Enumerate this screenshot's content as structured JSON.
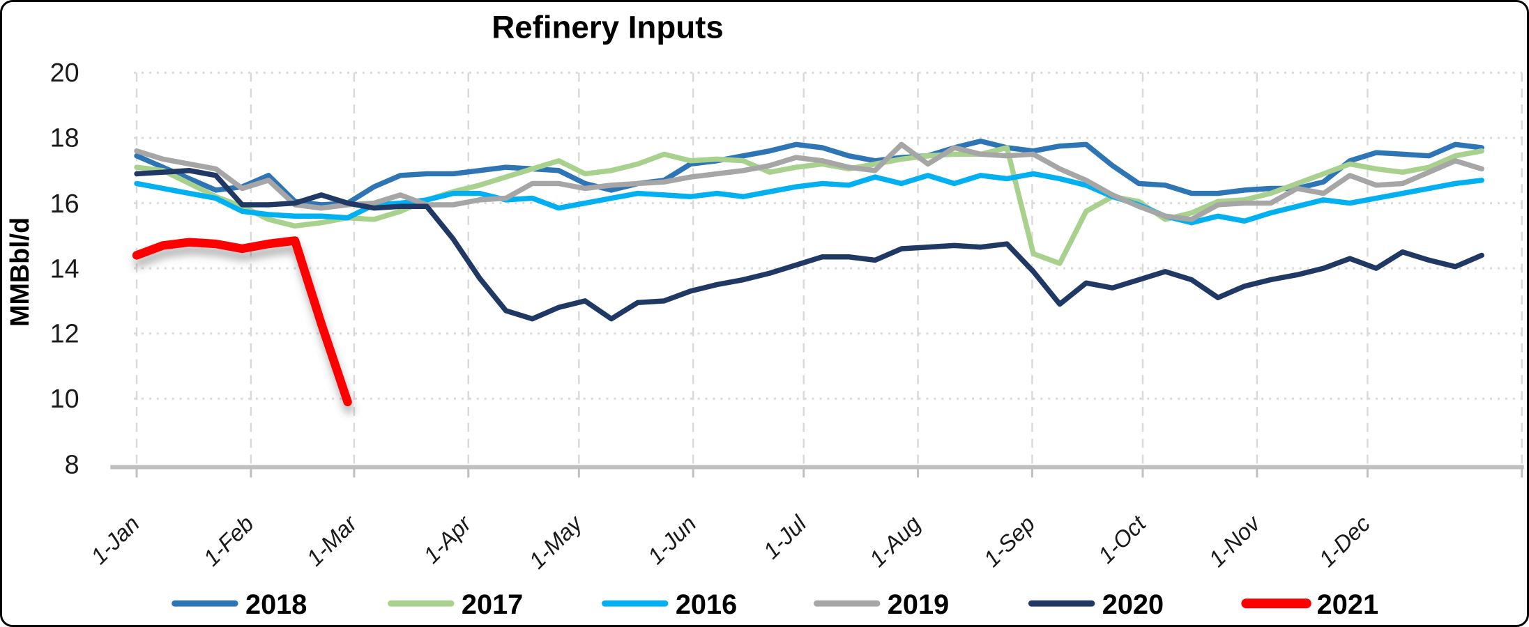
{
  "title": "Refinery Inputs",
  "y_axis": {
    "label": "MMBbl/d",
    "tick_labels": [
      "20",
      "18",
      "16",
      "14",
      "12",
      "10",
      "8"
    ],
    "min": 8,
    "max": 20
  },
  "x_axis": {
    "tick_labels": [
      "1-Jan",
      "1-Feb",
      "1-Mar",
      "1-Apr",
      "1-May",
      "1-Jun",
      "1-Jul",
      "1-Aug",
      "1-Sep",
      "1-Oct",
      "1-Nov",
      "1-Dec"
    ]
  },
  "colors": {
    "grid": "#D9D9D9",
    "axis": "#BFBFBF",
    "text": "#000000"
  },
  "chart_data": {
    "type": "line",
    "title": "Refinery Inputs",
    "ylabel": "MMBbl/d",
    "xlabel": "",
    "ylim": [
      8,
      20
    ],
    "x_unit": "weeks (weekly data, Jan through Dec)",
    "x_tick_labels": [
      "1-Jan",
      "1-Feb",
      "1-Mar",
      "1-Apr",
      "1-May",
      "1-Jun",
      "1-Jul",
      "1-Aug",
      "1-Sep",
      "1-Oct",
      "1-Nov",
      "1-Dec"
    ],
    "grid": "dashed light gray, monthly vertical and every-2-units horizontal",
    "legend_position": "bottom",
    "series": [
      {
        "name": "2018",
        "color": "#2E75B6",
        "emphasis": false,
        "values": [
          17.45,
          17.1,
          16.75,
          16.4,
          16.5,
          16.85,
          16.05,
          15.95,
          16.0,
          16.5,
          16.85,
          16.9,
          16.9,
          17.0,
          17.1,
          17.05,
          17.0,
          16.6,
          16.4,
          16.6,
          16.7,
          17.2,
          17.3,
          17.45,
          17.6,
          17.8,
          17.7,
          17.45,
          17.3,
          17.4,
          17.45,
          17.7,
          17.9,
          17.7,
          17.6,
          17.75,
          17.8,
          17.15,
          16.6,
          16.55,
          16.3,
          16.3,
          16.4,
          16.45,
          16.45,
          16.65,
          17.3,
          17.55,
          17.5,
          17.45,
          17.8,
          17.7
        ]
      },
      {
        "name": "2017",
        "color": "#A9D18E",
        "emphasis": false,
        "values": [
          17.1,
          17.0,
          16.6,
          16.2,
          15.9,
          15.5,
          15.3,
          15.4,
          15.55,
          15.5,
          15.75,
          16.1,
          16.35,
          16.55,
          16.8,
          17.05,
          17.3,
          16.9,
          17.0,
          17.2,
          17.5,
          17.3,
          17.35,
          17.3,
          16.95,
          17.1,
          17.2,
          17.05,
          17.2,
          17.35,
          17.45,
          17.5,
          17.5,
          17.7,
          14.45,
          14.15,
          15.75,
          16.2,
          16.05,
          15.5,
          15.7,
          16.05,
          16.1,
          16.3,
          16.6,
          16.9,
          17.2,
          17.05,
          16.95,
          17.1,
          17.45,
          17.6
        ]
      },
      {
        "name": "2016",
        "color": "#00B0F0",
        "emphasis": false,
        "values": [
          16.6,
          16.45,
          16.3,
          16.15,
          15.75,
          15.65,
          15.6,
          15.6,
          15.55,
          15.95,
          16.0,
          16.1,
          16.3,
          16.3,
          16.1,
          16.15,
          15.85,
          16.0,
          16.15,
          16.3,
          16.25,
          16.2,
          16.3,
          16.2,
          16.35,
          16.5,
          16.6,
          16.55,
          16.8,
          16.6,
          16.85,
          16.6,
          16.85,
          16.75,
          16.9,
          16.75,
          16.55,
          16.2,
          15.95,
          15.6,
          15.4,
          15.6,
          15.45,
          15.7,
          15.9,
          16.1,
          16.0,
          16.15,
          16.3,
          16.45,
          16.6,
          16.7
        ]
      },
      {
        "name": "2019",
        "color": "#A6A6A6",
        "emphasis": false,
        "values": [
          17.6,
          17.35,
          17.2,
          17.05,
          16.45,
          16.7,
          15.95,
          15.85,
          15.95,
          16.0,
          16.25,
          15.95,
          15.95,
          16.1,
          16.15,
          16.6,
          16.6,
          16.45,
          16.55,
          16.6,
          16.65,
          16.8,
          16.9,
          17.0,
          17.15,
          17.4,
          17.3,
          17.1,
          17.0,
          17.8,
          17.2,
          17.7,
          17.5,
          17.45,
          17.5,
          17.05,
          16.7,
          16.25,
          15.9,
          15.6,
          15.5,
          15.95,
          16.0,
          16.0,
          16.45,
          16.3,
          16.85,
          16.55,
          16.6,
          16.95,
          17.3,
          17.05
        ]
      },
      {
        "name": "2020",
        "color": "#1F3864",
        "emphasis": false,
        "values": [
          16.9,
          16.95,
          17.0,
          16.85,
          15.95,
          15.95,
          16.0,
          16.25,
          16.0,
          15.85,
          15.9,
          15.9,
          14.9,
          13.7,
          12.7,
          12.45,
          12.8,
          13.0,
          12.45,
          12.95,
          13.0,
          13.3,
          13.5,
          13.65,
          13.85,
          14.1,
          14.35,
          14.35,
          14.25,
          14.6,
          14.65,
          14.7,
          14.65,
          14.75,
          13.9,
          12.9,
          13.55,
          13.4,
          13.65,
          13.9,
          13.65,
          13.1,
          13.45,
          13.65,
          13.8,
          14.0,
          14.3,
          14.0,
          14.5,
          14.25,
          14.05,
          14.4
        ]
      },
      {
        "name": "2021",
        "color": "#FF0000",
        "emphasis": true,
        "values": [
          14.4,
          14.7,
          14.8,
          14.75,
          14.6,
          14.75,
          14.85,
          12.3,
          9.9
        ]
      }
    ]
  }
}
